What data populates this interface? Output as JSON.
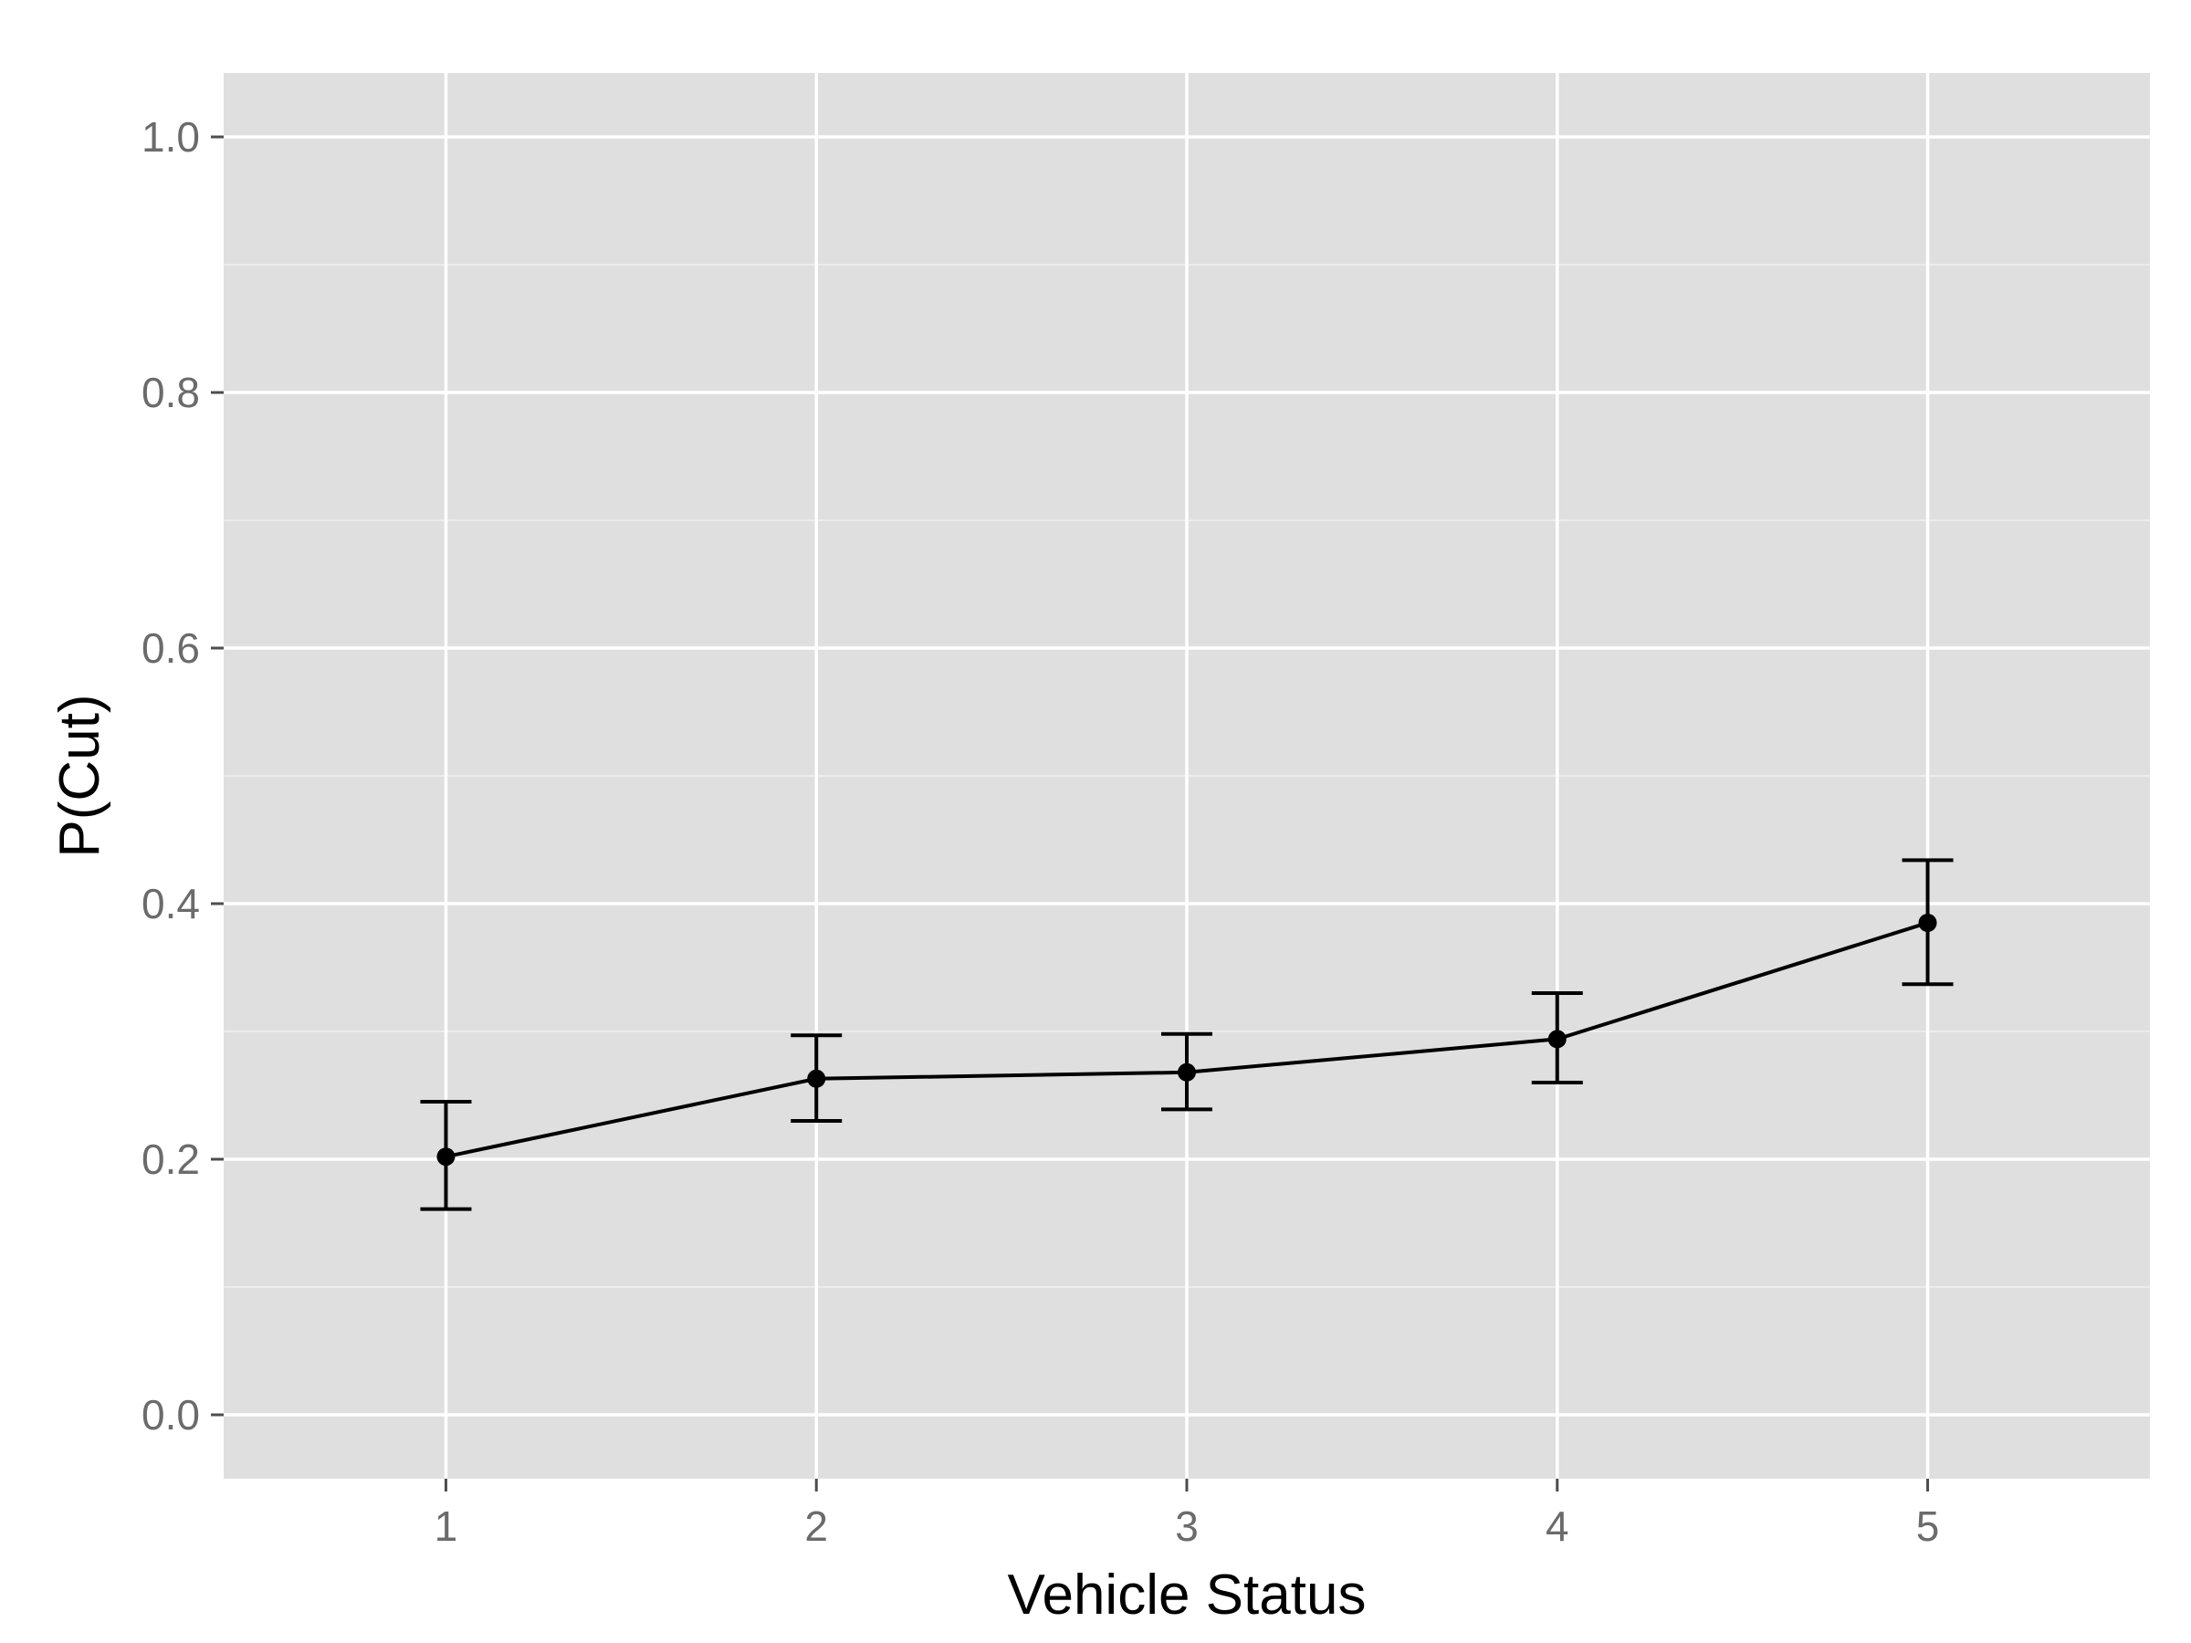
{
  "chart_data": {
    "type": "line",
    "title": "",
    "xlabel": "Vehicle Status",
    "ylabel": "P(Cut)",
    "x": [
      1,
      2,
      3,
      4,
      5
    ],
    "x_tick_labels": [
      "1",
      "2",
      "3",
      "4",
      "5"
    ],
    "y_ticks": [
      0.0,
      0.2,
      0.4,
      0.6,
      0.8,
      1.0
    ],
    "y_tick_labels": [
      "0.0",
      "0.2",
      "0.4",
      "0.6",
      "0.8",
      "1.0"
    ],
    "xlim": [
      0.4,
      5.6
    ],
    "ylim": [
      -0.05,
      1.05
    ],
    "series": [
      {
        "values": [
          0.202,
          0.263,
          0.268,
          0.294,
          0.385
        ],
        "error_lower": [
          0.161,
          0.23,
          0.239,
          0.26,
          0.337
        ],
        "error_upper": [
          0.245,
          0.297,
          0.298,
          0.33,
          0.434
        ]
      }
    ],
    "grid": true,
    "legend": "none",
    "colors": {
      "panel_background": "#dfdfdf",
      "grid_major": "#ffffff",
      "grid_minor": "#f0f0f0",
      "line": "#000000",
      "tick_label": "#6b6b6b",
      "axis_title": "#000000"
    }
  }
}
